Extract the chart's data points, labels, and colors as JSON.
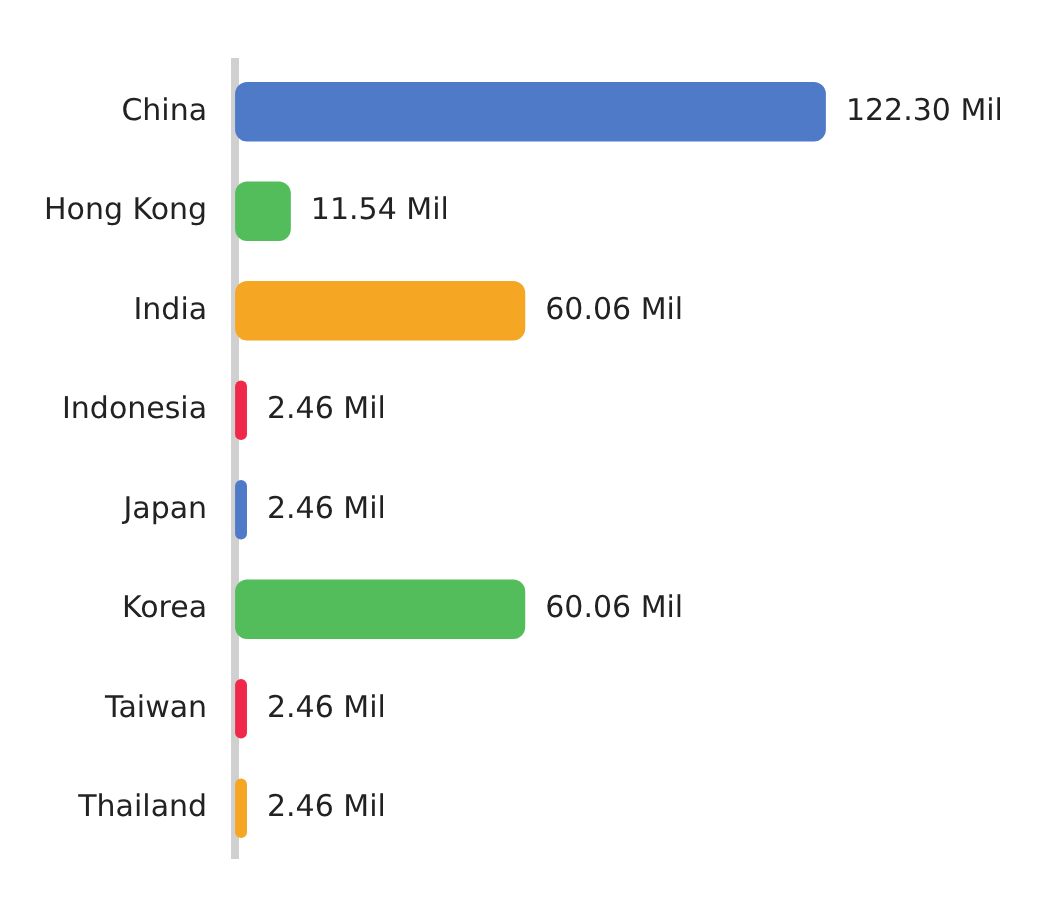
{
  "chart_data": {
    "type": "bar",
    "orientation": "horizontal",
    "categories": [
      "China",
      "Hong Kong",
      "India",
      "Indonesia",
      "Japan",
      "Korea",
      "Taiwan",
      "Thailand"
    ],
    "values": [
      122.3,
      11.54,
      60.06,
      2.46,
      2.46,
      60.06,
      2.46,
      2.46
    ],
    "colors": [
      "#4e7ac7",
      "#52bd5a",
      "#f5a623",
      "#f0294a",
      "#4e7ac7",
      "#52bd5a",
      "#f0294a",
      "#f5a623"
    ],
    "value_labels": [
      "122.30 Mil",
      "11.54 Mil",
      "60.06 Mil",
      "2.46 Mil",
      "2.46 Mil",
      "60.06 Mil",
      "2.46 Mil",
      "2.46 Mil"
    ],
    "grid": false,
    "legend": false,
    "tick_labels": "y"
  }
}
